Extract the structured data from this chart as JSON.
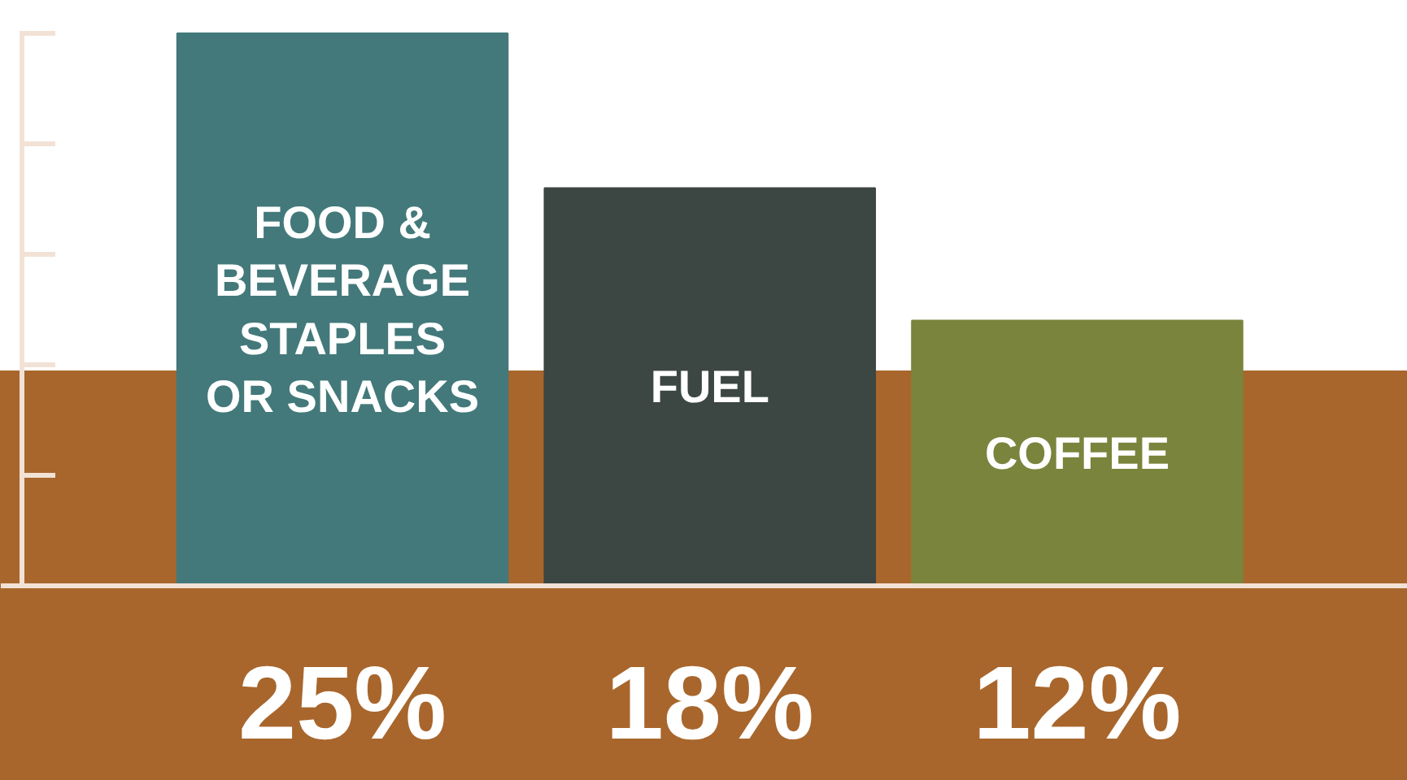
{
  "chart_data": {
    "type": "bar",
    "categories": [
      "FOOD & BEVERAGE STAPLES OR SNACKS",
      "FUEL",
      "COFFEE"
    ],
    "values": [
      25,
      18,
      12
    ],
    "colors": [
      "#43797a",
      "#3c4643",
      "#7a843c"
    ],
    "value_labels": [
      "25%",
      "18%",
      "12%"
    ],
    "grid": false
  }
}
